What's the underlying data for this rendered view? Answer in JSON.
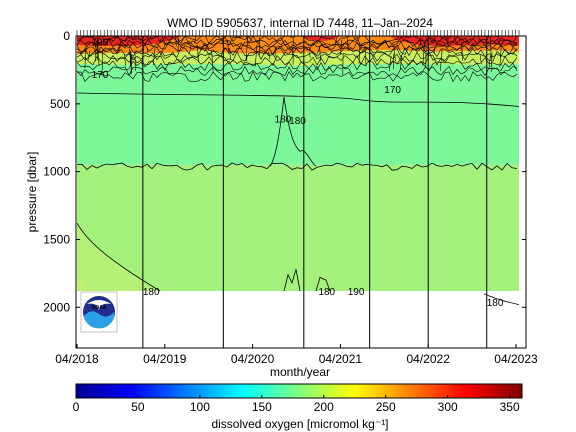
{
  "chart_data": [
    {
      "type": "heatmap",
      "title": "WMO ID 5905637, internal ID 7448, 11–Jan–2024",
      "xlabel": "month/year",
      "ylabel": "pressure [dbar]",
      "x_ticks": [
        "04/2018",
        "04/2019",
        "04/2020",
        "04/2021",
        "04/2022",
        "04/2023"
      ],
      "y_ticks": [
        "0",
        "500",
        "1000",
        "1500",
        "2000"
      ],
      "xlim": [
        "2018-04",
        "2023-04"
      ],
      "ylim": [
        2300,
        0
      ],
      "y_reversed": true,
      "grid": false,
      "profile_lines": [
        "2019-01",
        "2019-12",
        "2020-11",
        "2021-08",
        "2022-04",
        "2022-12"
      ],
      "layers": [
        {
          "from_dbar": 0,
          "to_dbar": 60,
          "value": 300
        },
        {
          "from_dbar": 60,
          "to_dbar": 150,
          "value": 240
        },
        {
          "from_dbar": 150,
          "to_dbar": 450,
          "value": 190
        },
        {
          "from_dbar": 450,
          "to_dbar": 950,
          "value": 185
        },
        {
          "from_dbar": 950,
          "to_dbar": 1880,
          "value": 195
        }
      ],
      "contour_labels": [
        {
          "text": "170",
          "x": "2018-06",
          "y": 280
        },
        {
          "text": "170",
          "x": "2021-10",
          "y": 390
        },
        {
          "text": "180",
          "x": "2020-07",
          "y": 610
        },
        {
          "text": "180",
          "x": "2020-09",
          "y": 620
        },
        {
          "text": "180",
          "x": "2019-01",
          "y": 1880
        },
        {
          "text": "180",
          "x": "2021-01",
          "y": 1880
        },
        {
          "text": "190",
          "x": "2021-05",
          "y": 1880
        },
        {
          "text": "180",
          "x": "2022-12",
          "y": 1960
        },
        {
          "text": "190",
          "x": "2018-06",
          "y": 40
        }
      ]
    },
    {
      "type": "colorbar",
      "label": "dissolved oxygen [micromol kg⁻¹]",
      "ticks": [
        0,
        50,
        100,
        150,
        200,
        250,
        300,
        350
      ],
      "range": [
        0,
        360
      ],
      "colors": [
        "#00008f",
        "#0000ff",
        "#0080ff",
        "#00ffff",
        "#80ff80",
        "#ffff00",
        "#ff8000",
        "#ff0000",
        "#800000"
      ]
    }
  ],
  "logo": {
    "text": "NOAA",
    "colors": {
      "navy": "#1f2f8f",
      "sky": "#2aa0e6",
      "white": "#ffffff"
    }
  },
  "colors": {
    "fill_upper": "#7cf79a",
    "fill_lower": "#a4f27c",
    "fill_deep_left": "#b4f176",
    "surface_red": "#e8251f",
    "surface_orange": "#fb8a12",
    "contour": "#000000"
  }
}
